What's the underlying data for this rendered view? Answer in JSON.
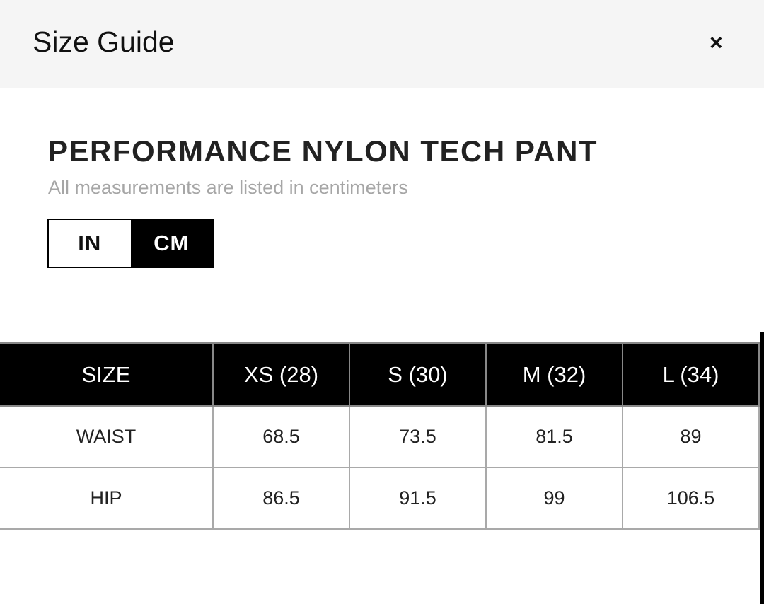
{
  "header": {
    "title": "Size Guide",
    "close_icon": "close-icon",
    "close_label": "×"
  },
  "product": {
    "name": "PERFORMANCE NYLON TECH PANT",
    "note": "All measurements are listed in centimeters"
  },
  "unit_toggle": {
    "options": [
      "IN",
      "CM"
    ],
    "selected": "CM"
  },
  "table": {
    "headers": [
      "SIZE",
      "XS (28)",
      "S (30)",
      "M (32)",
      "L (34)"
    ],
    "rows": [
      [
        "WAIST",
        "68.5",
        "73.5",
        "81.5",
        "89"
      ],
      [
        "HIP",
        "86.5",
        "91.5",
        "99",
        "106.5"
      ]
    ]
  }
}
